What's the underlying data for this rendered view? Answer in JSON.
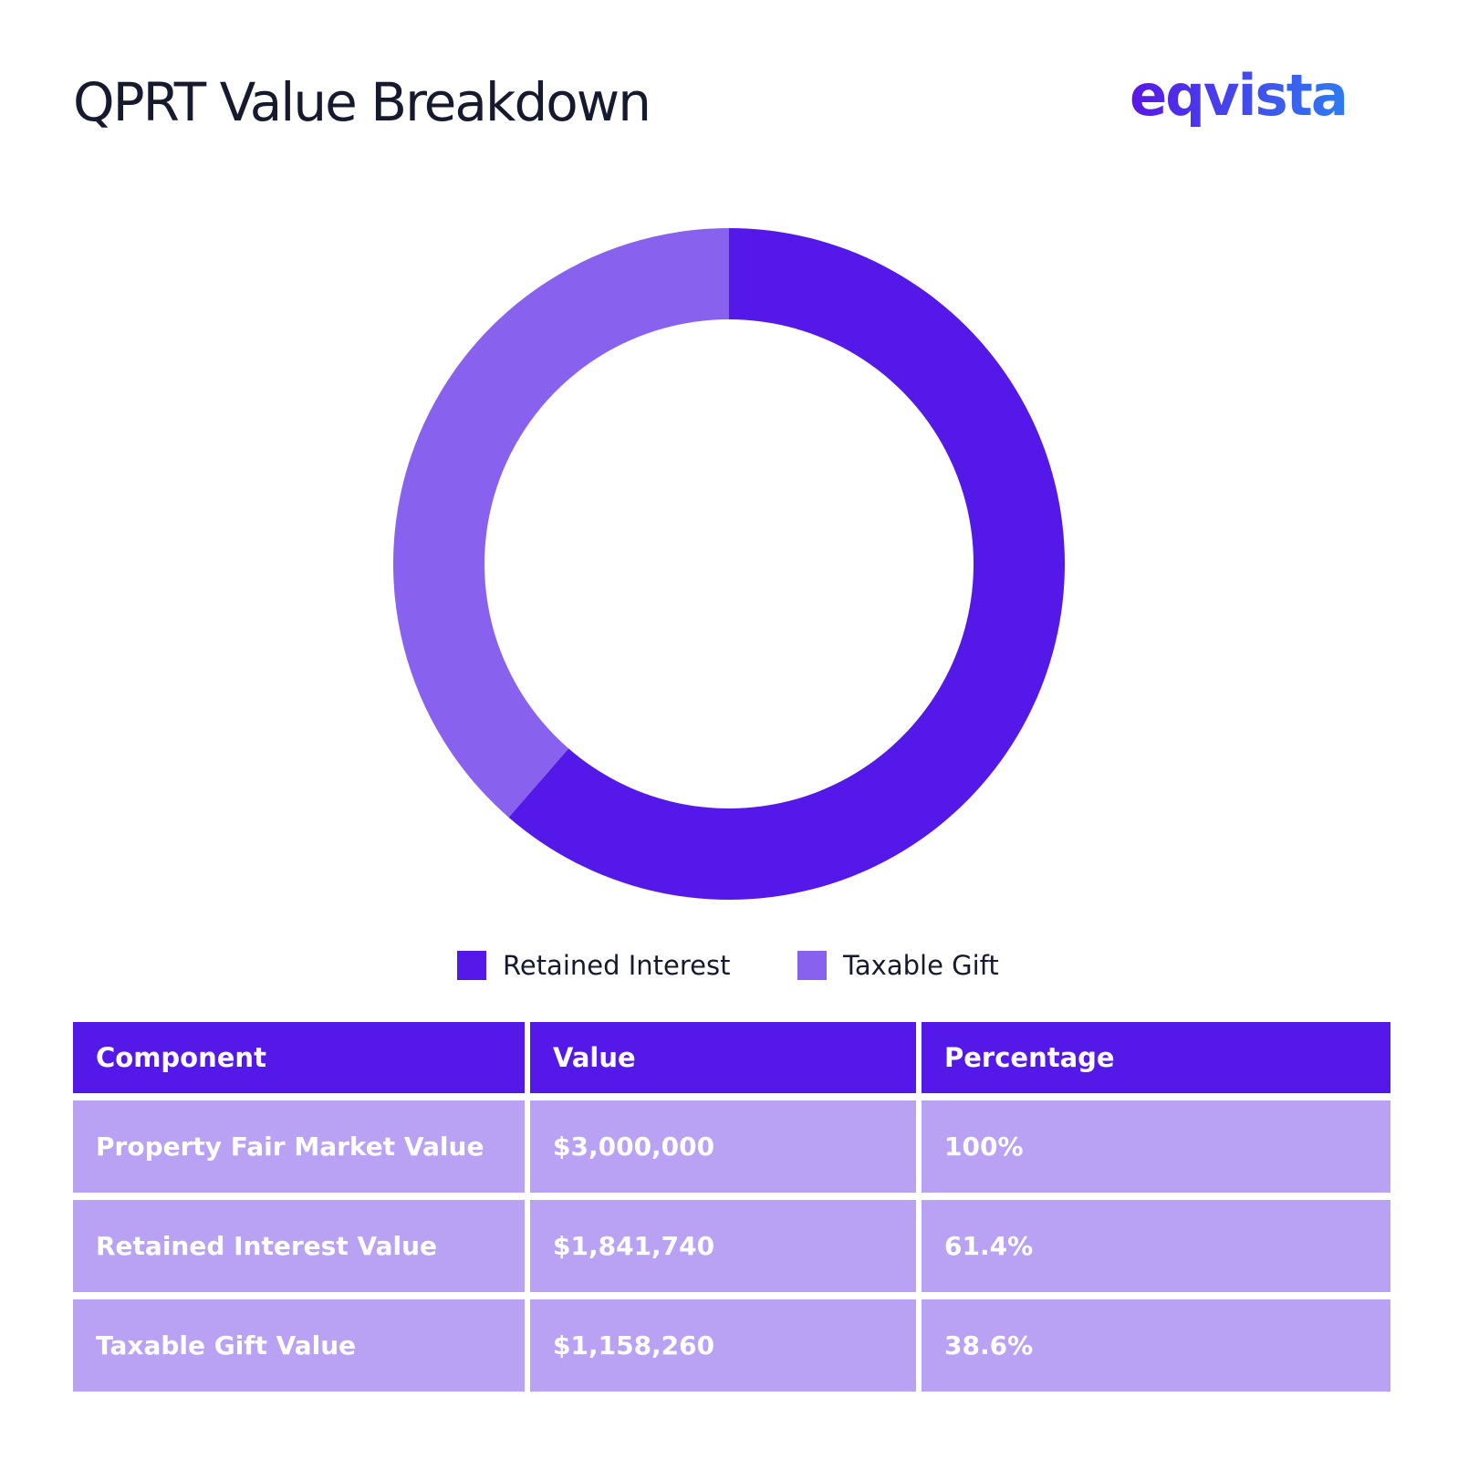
{
  "title": "QPRT Value Breakdown",
  "brand": {
    "name": "eqvista",
    "colors": {
      "gradient_start": "#5a16e6",
      "gradient_end": "#2e7bf0"
    }
  },
  "colors": {
    "retained": "#5419e8",
    "gift": "#8862ef",
    "table_header": "#5419e8",
    "table_body": "#b9a2f4",
    "title_text": "#161a2e"
  },
  "chart_data": {
    "type": "pie",
    "donut": true,
    "start_angle_deg": 0,
    "direction": "clockwise",
    "title": "",
    "slices": [
      {
        "label": "Retained Interest",
        "value": 1841740,
        "percent": 61.4,
        "color": "#5419e8"
      },
      {
        "label": "Taxable Gift",
        "value": 1158260,
        "percent": 38.6,
        "color": "#8862ef"
      }
    ],
    "legend": {
      "placement": "bottom-center",
      "entries": [
        "Retained Interest",
        "Taxable Gift"
      ]
    }
  },
  "table": {
    "headers": [
      "Component",
      "Value",
      "Percentage"
    ],
    "rows": [
      [
        "Property Fair Market Value",
        "$3,000,000",
        "100%"
      ],
      [
        "Retained Interest Value",
        "$1,841,740",
        "61.4%"
      ],
      [
        "Taxable Gift Value",
        "$1,158,260",
        "38.6%"
      ]
    ]
  }
}
